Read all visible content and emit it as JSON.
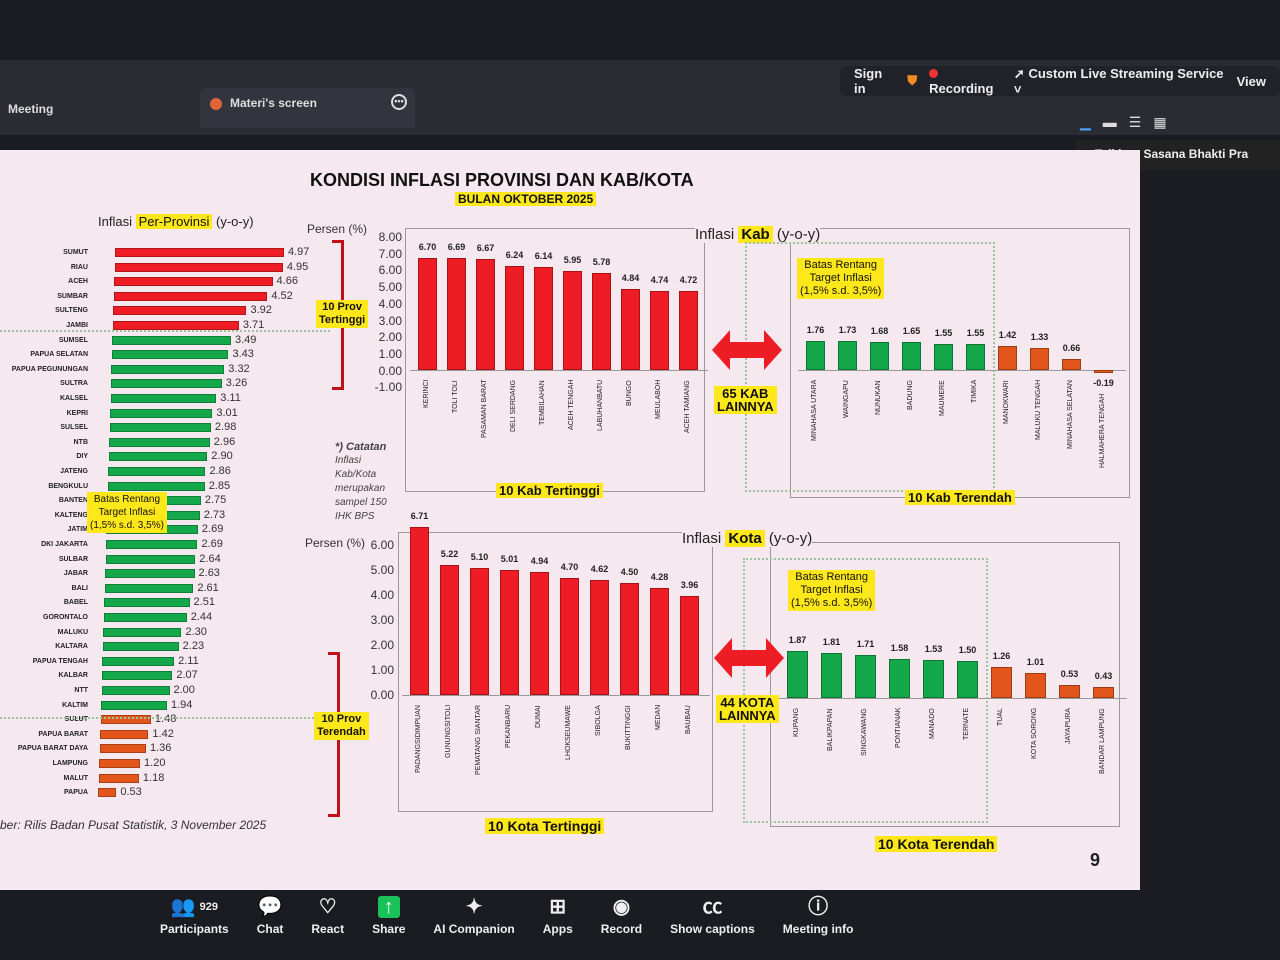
{
  "zoom": {
    "tabs": [
      "Meeting",
      "Materi's screen"
    ],
    "top_right": {
      "sign_in": "Sign in",
      "recording": "Recording",
      "streaming": "Custom Live Streaming Service",
      "view": "View"
    },
    "talking": "Talking: Sasana Bhakti Pra",
    "toolbar": [
      {
        "label": "Participants",
        "icon": "participants-icon",
        "count": "929"
      },
      {
        "label": "Chat",
        "icon": "chat-icon"
      },
      {
        "label": "React",
        "icon": "heart-icon"
      },
      {
        "label": "Share",
        "icon": "share-icon"
      },
      {
        "label": "AI Companion",
        "icon": "sparkle-icon"
      },
      {
        "label": "Apps",
        "icon": "apps-icon"
      },
      {
        "label": "Record",
        "icon": "record-icon"
      },
      {
        "label": "Show captions",
        "icon": "cc-icon"
      },
      {
        "label": "Meeting info",
        "icon": "info-icon"
      }
    ]
  },
  "slide": {
    "title": "KONDISI INFLASI PROVINSI DAN KAB/KOTA",
    "subtitle": "BULAN OKTOBER 2025",
    "page": "9",
    "source": "ber: Rilis Badan Pusat Statistik, 3 November 2025",
    "note_title": "*) Catatan",
    "note_body": "Inflasi Kab/Kota merupakan sampel 150 IHK BPS",
    "target_note": [
      "Batas Rentang",
      "Target Inflasi",
      "(1,5% s.d. 3,5%)"
    ],
    "prov_top": [
      "10 Prov",
      "Tertinggi"
    ],
    "prov_low": [
      "10 Prov",
      "Terendah"
    ],
    "kab_other": [
      "65 KAB",
      "LAINNYA"
    ],
    "kota_other": [
      "44 KOTA",
      "LAINNYA"
    ],
    "kab_top_label": "10 Kab Tertinggi",
    "kab_low_label": "10 Kab Terendah",
    "kota_top_label": "10 Kota Tertinggi",
    "kota_low_label": "10 Kota Terendah"
  },
  "colors": {
    "above": "#ee1c25",
    "within": "#14a84b",
    "below": "#e2561c",
    "highlight": "#ffe81a"
  },
  "chart_data": [
    {
      "type": "bar",
      "orientation": "horizontal",
      "title_prefix": "Inflasi ",
      "title_hl": "Per-Provinsi",
      "title_suffix": " (y-o-y)",
      "categories": [
        "SUMUT",
        "RIAU",
        "ACEH",
        "SUMBAR",
        "SULTENG",
        "JAMBI",
        "SUMSEL",
        "PAPUA SELATAN",
        "PAPUA PEGUNUNGAN",
        "SULTRA",
        "KALSEL",
        "KEPRI",
        "SULSEL",
        "NTB",
        "DIY",
        "JATENG",
        "BENGKULU",
        "BANTEN",
        "KALTENG",
        "JATIM",
        "DKI JAKARTA",
        "SULBAR",
        "JABAR",
        "BALI",
        "BABEL",
        "GORONTALO",
        "MALUKU",
        "KALTARA",
        "PAPUA TENGAH",
        "KALBAR",
        "NTT",
        "KALTIM",
        "SULUT",
        "PAPUA BARAT",
        "PAPUA BARAT DAYA",
        "LAMPUNG",
        "MALUT",
        "PAPUA"
      ],
      "values": [
        4.97,
        4.95,
        4.66,
        4.52,
        3.92,
        3.71,
        3.49,
        3.43,
        3.32,
        3.26,
        3.11,
        3.01,
        2.98,
        2.96,
        2.9,
        2.86,
        2.85,
        2.75,
        2.73,
        2.69,
        2.69,
        2.64,
        2.63,
        2.61,
        2.51,
        2.44,
        2.3,
        2.23,
        2.11,
        2.07,
        2.0,
        1.94,
        1.48,
        1.42,
        1.36,
        1.2,
        1.18,
        0.53
      ]
    },
    {
      "type": "bar",
      "title_prefix": "Inflasi ",
      "title_hl": "Kab",
      "title_suffix": " (y-o-y)",
      "ylabel": "Persen (%)",
      "ylim": [
        -1,
        8
      ],
      "yticks": [
        "8.00",
        "7.00",
        "6.00",
        "5.00",
        "4.00",
        "3.00",
        "2.00",
        "1.00",
        "0.00",
        "-1.00"
      ],
      "top": {
        "categories": [
          "KERINCI",
          "TOLI TOLI",
          "PASAMAN BARAT",
          "DELI SERDANG",
          "TEMBILAHAN",
          "ACEH TENGAH",
          "LABUHANBATU",
          "BUNGO",
          "MEULABOH",
          "ACEH TAMIANG"
        ],
        "values": [
          6.7,
          6.69,
          6.67,
          6.24,
          6.14,
          5.95,
          5.78,
          4.84,
          4.74,
          4.72
        ]
      },
      "low": {
        "categories": [
          "MINAHASA UTARA",
          "WAINGAPU",
          "NUNUKAN",
          "BADUNG",
          "MAUMERE",
          "TIMIKA",
          "MANOKWARI",
          "MALUKU TENGAH",
          "MINAHASA SELATAN",
          "HALMAHERA TENGAH"
        ],
        "values": [
          1.76,
          1.73,
          1.68,
          1.65,
          1.55,
          1.55,
          1.42,
          1.33,
          0.66,
          -0.19
        ]
      }
    },
    {
      "type": "bar",
      "title_prefix": "Inflasi ",
      "title_hl": "Kota",
      "title_suffix": " (y-o-y)",
      "ylabel": "Persen (%)",
      "ylim": [
        0,
        6
      ],
      "yticks": [
        "6.00",
        "5.00",
        "4.00",
        "3.00",
        "2.00",
        "1.00",
        "0.00"
      ],
      "top": {
        "categories": [
          "PADANGSIDIMPUAN",
          "GUNUNGSITOLI",
          "PEMATANG SIANTAR",
          "PEKANBARU",
          "DUMAI",
          "LHOKSEUMAWE",
          "SIBOLGA",
          "BUKITTINGGI",
          "MEDAN",
          "BAUBAU"
        ],
        "values": [
          6.71,
          5.22,
          5.1,
          5.01,
          4.94,
          4.7,
          4.62,
          4.5,
          4.28,
          3.96
        ]
      },
      "low": {
        "categories": [
          "KUPANG",
          "BALIKPAPAN",
          "SINGKAWANG",
          "PONTIANAK",
          "MANADO",
          "TERNATE",
          "TUAL",
          "KOTA SORONG",
          "JAYAPURA",
          "BANDAR LAMPUNG"
        ],
        "values": [
          1.87,
          1.81,
          1.71,
          1.58,
          1.53,
          1.5,
          1.26,
          1.01,
          0.53,
          0.43
        ]
      }
    }
  ]
}
